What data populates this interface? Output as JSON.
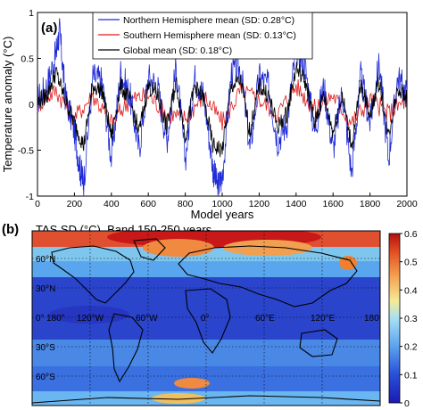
{
  "panel_a": {
    "label": "(a)",
    "ylabel": "Temperature anomaly (°C)",
    "xlabel": "Model years",
    "xticks": [
      "0",
      "200",
      "400",
      "600",
      "800",
      "1000",
      "1200",
      "1400",
      "1600",
      "1800",
      "2000"
    ],
    "yticks": [
      "-1",
      "-0.5",
      "0",
      "0.5",
      "1"
    ],
    "legend": [
      {
        "text": "Northern Hemisphere mean (SD: 0.28°C)",
        "color": "#1f2bd6"
      },
      {
        "text": "Southern Hemisphere mean (SD: 0.13°C)",
        "color": "#e01b1b"
      },
      {
        "text": "Global mean (SD: 0.18°C)",
        "color": "#000000"
      }
    ]
  },
  "panel_b": {
    "label": "(b)",
    "title": "TAS SD (°C), Band 150-250 years",
    "lat_labels": [
      "60°N",
      "30°N",
      "0°",
      "30°S",
      "60°S"
    ],
    "lon_labels": [
      "120°W",
      "60°W",
      "0°",
      "60°E",
      "120°E",
      "180°"
    ],
    "lon_left_label": "180°",
    "colorbar_ticks": [
      "0",
      "0.1",
      "0.2",
      "0.3",
      "0.4",
      "0.5",
      "0.6"
    ],
    "colors": {
      "low": "#1a2ac8",
      "mid_low": "#3a78e8",
      "mid": "#8fd0f0",
      "mid_high": "#f0e090",
      "high": "#f08030",
      "max": "#c81010"
    }
  },
  "chart_data": [
    {
      "type": "line",
      "title": "(a)",
      "xlabel": "Model years",
      "ylabel": "Temperature anomaly (°C)",
      "xlim": [
        0,
        2000
      ],
      "ylim": [
        -1,
        1
      ],
      "grid": false,
      "legend_position": "top-center",
      "series": [
        {
          "name": "Northern Hemisphere mean (SD: 0.28°C)",
          "color": "#1f2bd6",
          "x": [
            0,
            50,
            100,
            120,
            150,
            200,
            230,
            250,
            300,
            350,
            400,
            450,
            500,
            550,
            600,
            650,
            700,
            750,
            800,
            850,
            900,
            950,
            975,
            1000,
            1050,
            1100,
            1150,
            1200,
            1250,
            1300,
            1350,
            1400,
            1450,
            1500,
            1550,
            1600,
            1650,
            1700,
            1750,
            1800,
            1850,
            1900,
            1950,
            2000
          ],
          "y": [
            0.05,
            0.2,
            0.55,
            0.8,
            0.1,
            -0.3,
            -0.7,
            -0.85,
            0.3,
            0.25,
            -0.6,
            0.35,
            0.1,
            -0.5,
            0.3,
            0.2,
            -0.4,
            0.4,
            -0.6,
            0.3,
            0.1,
            -0.7,
            -0.9,
            -0.8,
            0.35,
            0.4,
            -0.5,
            0.3,
            0.2,
            -0.4,
            -0.2,
            0.6,
            0.4,
            -0.3,
            0.2,
            -0.5,
            0.15,
            -0.75,
            0.3,
            -0.2,
            0.45,
            -0.6,
            0.3,
            0.1
          ]
        },
        {
          "name": "Southern Hemisphere mean (SD: 0.13°C)",
          "color": "#e01b1b",
          "x": [
            0,
            100,
            200,
            300,
            400,
            500,
            600,
            700,
            800,
            900,
            1000,
            1100,
            1200,
            1300,
            1400,
            1500,
            1600,
            1700,
            1800,
            1900,
            2000
          ],
          "y": [
            0.0,
            0.15,
            -0.15,
            0.1,
            -0.2,
            0.05,
            0.1,
            -0.1,
            -0.15,
            0.1,
            -0.2,
            0.15,
            0.05,
            -0.1,
            0.2,
            -0.05,
            0.1,
            -0.2,
            0.05,
            -0.1,
            0.05
          ]
        },
        {
          "name": "Global mean (SD: 0.18°C)",
          "color": "#000000",
          "x": [
            0,
            50,
            100,
            150,
            200,
            250,
            300,
            350,
            400,
            450,
            500,
            550,
            600,
            650,
            700,
            750,
            800,
            850,
            900,
            950,
            1000,
            1050,
            1100,
            1150,
            1200,
            1250,
            1300,
            1350,
            1400,
            1450,
            1500,
            1550,
            1600,
            1650,
            1700,
            1750,
            1800,
            1850,
            1900,
            1950,
            2000
          ],
          "y": [
            0.02,
            0.1,
            0.35,
            0.05,
            -0.2,
            -0.45,
            0.2,
            0.15,
            -0.35,
            0.2,
            0.05,
            -0.3,
            0.2,
            0.1,
            -0.25,
            0.25,
            -0.35,
            0.2,
            0.05,
            -0.45,
            -0.5,
            0.2,
            0.25,
            -0.3,
            0.2,
            0.1,
            -0.25,
            -0.1,
            0.4,
            0.25,
            -0.2,
            0.1,
            -0.3,
            0.1,
            -0.45,
            0.2,
            -0.1,
            0.25,
            -0.35,
            0.2,
            0.05
          ]
        }
      ]
    },
    {
      "type": "heatmap",
      "title": "TAS SD (°C), Band 150-250 years",
      "colorbar_range": [
        0,
        0.6
      ],
      "colorbar_ticks": [
        0,
        0.1,
        0.2,
        0.3,
        0.4,
        0.5,
        0.6
      ]
    }
  ]
}
